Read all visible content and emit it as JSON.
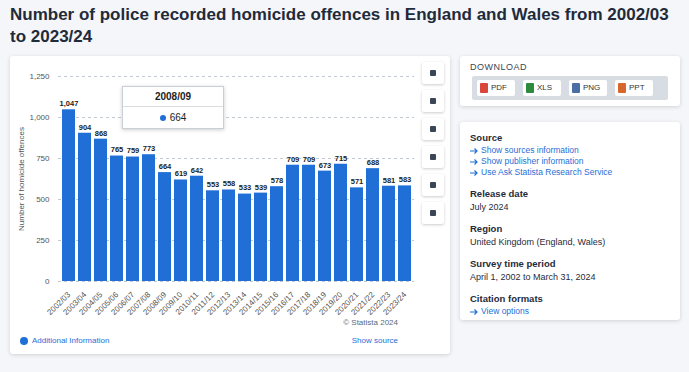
{
  "chart_data": {
    "type": "bar",
    "title": "Number of police recorded homicide offences in England and Wales from 2002/03 to 2023/24",
    "categories": [
      "2002/03",
      "2003/04",
      "2004/05",
      "2005/06",
      "2006/07",
      "2007/08",
      "2008/09",
      "2009/10",
      "2010/11",
      "2011/12",
      "2012/13",
      "2013/14",
      "2014/15",
      "2015/16",
      "2016/17",
      "2017/18",
      "2018/19",
      "2019/20",
      "2020/21",
      "2021/22",
      "2022/23",
      "2023/24"
    ],
    "values": [
      1047,
      904,
      868,
      765,
      759,
      773,
      664,
      619,
      642,
      553,
      558,
      533,
      539,
      578,
      709,
      709,
      673,
      715,
      571,
      688,
      581,
      583
    ],
    "value_labels": [
      "1,047",
      "904",
      "868",
      "765",
      "759",
      "773",
      "664",
      "619",
      "642",
      "553",
      "558",
      "533",
      "539",
      "578",
      "709",
      "709",
      "673",
      "715",
      "571",
      "688",
      "581",
      "583"
    ],
    "color": "#1f6fd6",
    "y_label": "Number of homicide offences",
    "ylim": [
      0,
      1250
    ],
    "yticks": [
      0,
      250,
      500,
      750,
      {
        "value": 1000,
        "label": "1,000"
      },
      {
        "value": 1250,
        "label": "1,250"
      }
    ],
    "grid": true,
    "data_labels": true,
    "annotations": [
      {
        "category": "2008/09",
        "value": 664
      }
    ]
  },
  "page": {
    "credit": "© Statista 2024",
    "additional_information": "Additional Information",
    "show_source": "Show source",
    "download": {
      "label": "DOWNLOAD",
      "formats": [
        "PDF",
        "XLS",
        "PNG",
        "PPT"
      ]
    },
    "sections": [
      {
        "heading": "Source",
        "links": [
          "Show sources information",
          "Show publisher information",
          "Use Ask Statista Research Service"
        ]
      },
      {
        "heading": "Release date",
        "text": "July 2024"
      },
      {
        "heading": "Region",
        "text": "United Kingdom (England, Wales)"
      },
      {
        "heading": "Survey time period",
        "text": "April 1, 2002 to March 31, 2024"
      },
      {
        "heading": "Citation formats",
        "links": [
          "View options"
        ]
      }
    ]
  }
}
